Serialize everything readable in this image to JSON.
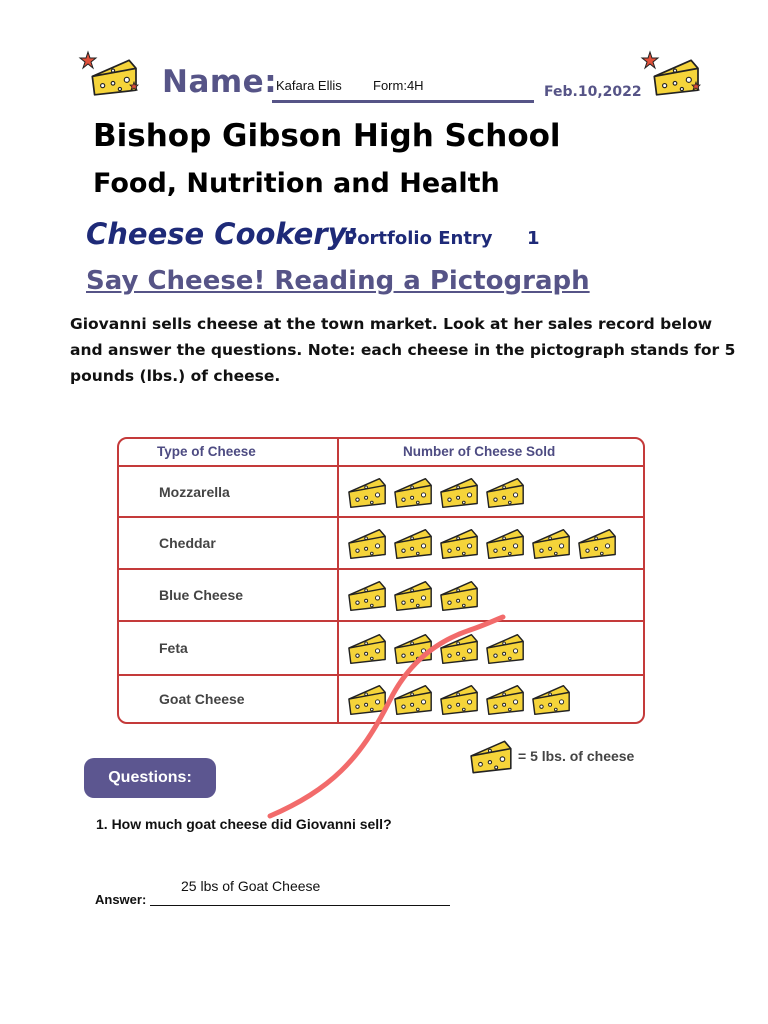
{
  "header": {
    "name_label": "Name:",
    "student_name": "Kafara Ellis",
    "form": "Form:4H",
    "date": "Feb.10,2022",
    "school": "Bishop Gibson High School",
    "course": "Food, Nutrition and Health",
    "unit": "Cheese Cookery:",
    "entry_label": "Portfolio Entry",
    "entry_number": "1",
    "activity_title": "Say Cheese! Reading a Pictograph"
  },
  "intro": "Giovanni sells cheese at the town market.  Look at her sales record below and answer the questions. Note: each cheese in the pictograph stands for 5 pounds (lbs.) of cheese.",
  "table": {
    "col_type": "Type of Cheese",
    "col_count": "Number of Cheese Sold",
    "rows": [
      {
        "type": "Mozzarella",
        "icons": 4
      },
      {
        "type": "Cheddar",
        "icons": 6
      },
      {
        "type": "Blue Cheese",
        "icons": 3
      },
      {
        "type": "Feta",
        "icons": 4
      },
      {
        "type": "Goat Cheese",
        "icons": 5
      }
    ]
  },
  "legend": "= 5 lbs. of cheese",
  "questions": {
    "badge": "Questions:",
    "q1": "1. How much goat cheese did Giovanni sell?",
    "answer_label": "Answer:",
    "answer_value": "25 lbs of Goat Cheese"
  },
  "colors": {
    "title_purple": "#565487",
    "table_border": "#c43a3a",
    "cheese_fill": "#f5d43a",
    "pen_stroke": "#f26b6b"
  }
}
